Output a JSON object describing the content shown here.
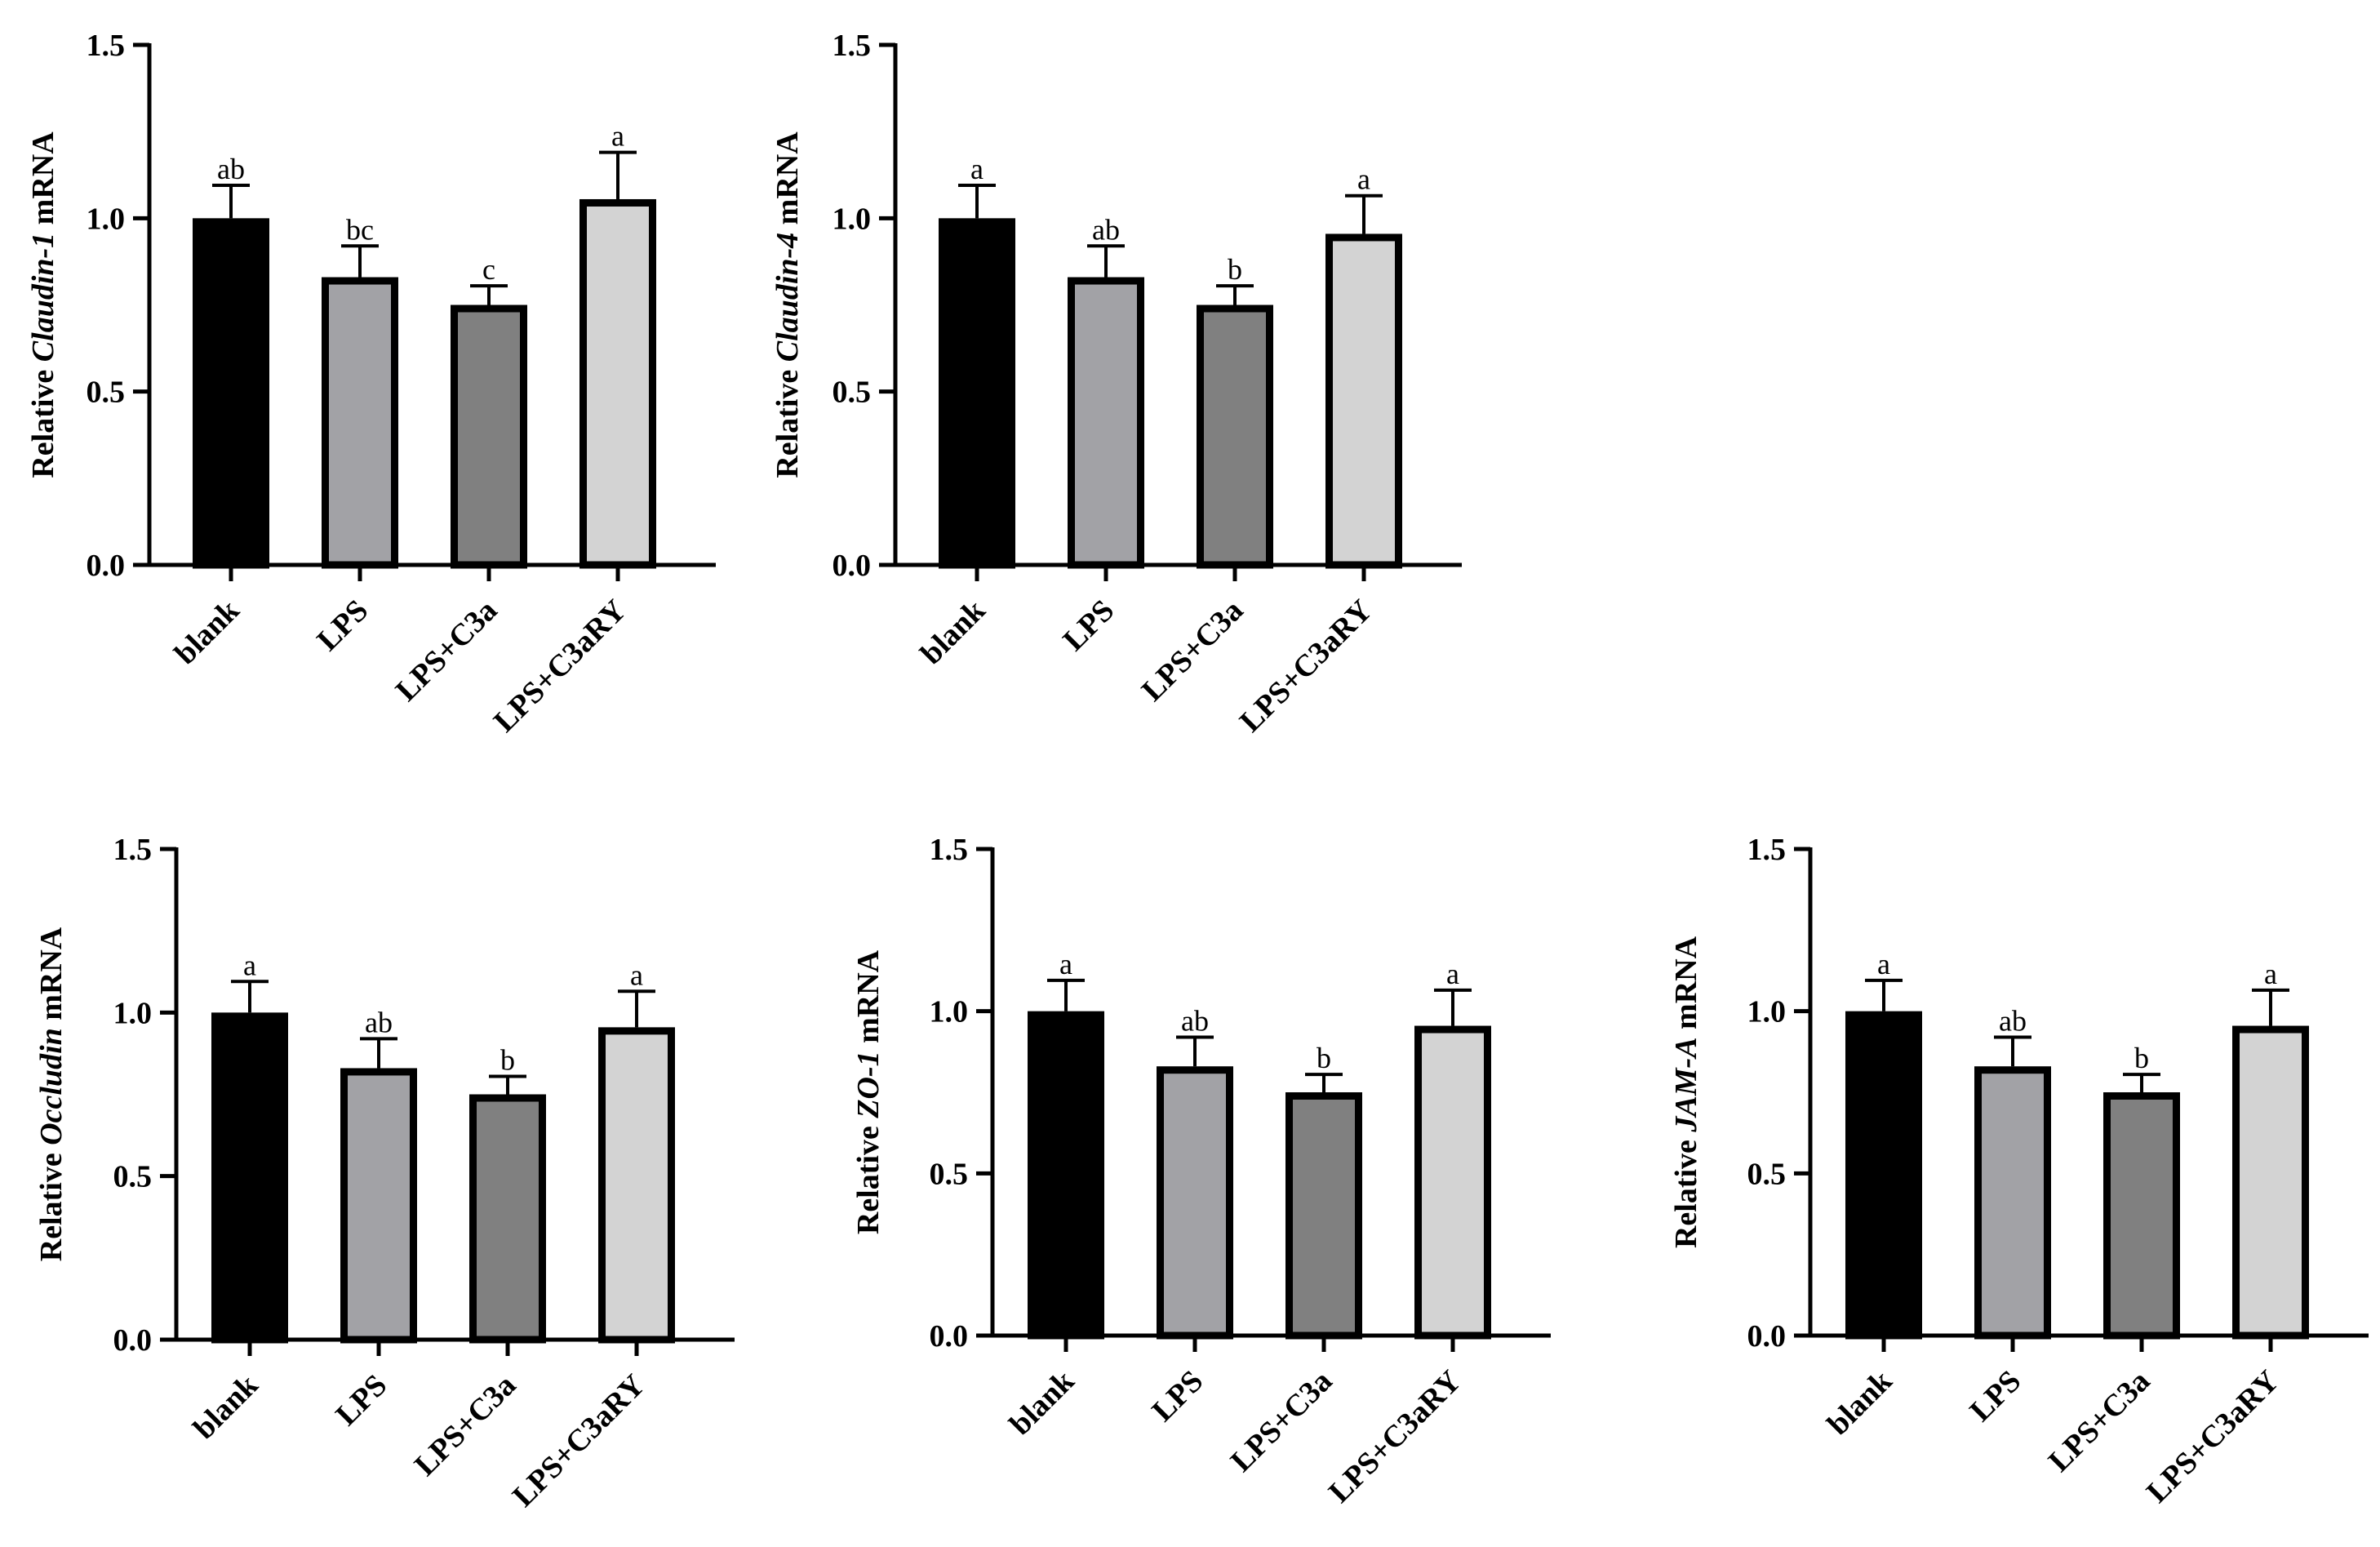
{
  "chart_data": [
    {
      "type": "bar",
      "panel": "claudin-1",
      "categories": [
        "blank",
        "LPS",
        "LPS+C3a",
        "LPS+C3aRY"
      ],
      "values": [
        1.0,
        0.83,
        0.75,
        1.055
      ],
      "errors": [
        0.095,
        0.09,
        0.055,
        0.135
      ],
      "significance": [
        "ab",
        "bc",
        "c",
        "a"
      ],
      "colors": [
        "#000000",
        "#a2a2a6",
        "#808080",
        "#d3d3d3"
      ],
      "ylabel_prefix": "Relative ",
      "ylabel_gene": "Claudin-1",
      "ylabel_suffix": " mRNA",
      "ylim": [
        0,
        1.5
      ],
      "yticks": [
        "0.0",
        "0.5",
        "1.0",
        "1.5"
      ],
      "ytick_values": [
        0,
        0.5,
        1.0,
        1.5
      ]
    },
    {
      "type": "bar",
      "panel": "claudin-4",
      "categories": [
        "blank",
        "LPS",
        "LPS+C3a",
        "LPS+C3aRY"
      ],
      "values": [
        1.0,
        0.83,
        0.75,
        0.955
      ],
      "errors": [
        0.095,
        0.09,
        0.055,
        0.11
      ],
      "significance": [
        "a",
        "ab",
        "b",
        "a"
      ],
      "colors": [
        "#000000",
        "#a2a2a6",
        "#808080",
        "#d3d3d3"
      ],
      "ylabel_prefix": "Relative ",
      "ylabel_gene": "Claudin-4",
      "ylabel_suffix": " mRNA",
      "ylim": [
        0,
        1.5
      ],
      "yticks": [
        "0.0",
        "0.5",
        "1.0",
        "1.5"
      ],
      "ytick_values": [
        0,
        0.5,
        1.0,
        1.5
      ]
    },
    {
      "type": "bar",
      "panel": "occludin",
      "categories": [
        "blank",
        "LPS",
        "LPS+C3a",
        "LPS+C3aRY"
      ],
      "values": [
        1.0,
        0.83,
        0.75,
        0.955
      ],
      "errors": [
        0.095,
        0.09,
        0.055,
        0.11
      ],
      "significance": [
        "a",
        "ab",
        "b",
        "a"
      ],
      "colors": [
        "#000000",
        "#a2a2a6",
        "#808080",
        "#d3d3d3"
      ],
      "ylabel_prefix": "Relative ",
      "ylabel_gene": "Occludin",
      "ylabel_suffix": " mRNA",
      "ylim": [
        0,
        1.5
      ],
      "yticks": [
        "0.0",
        "0.5",
        "1.0",
        "1.5"
      ],
      "ytick_values": [
        0,
        0.5,
        1.0,
        1.5
      ]
    },
    {
      "type": "bar",
      "panel": "zo-1",
      "categories": [
        "blank",
        "LPS",
        "LPS+C3a",
        "LPS+C3aRY"
      ],
      "values": [
        1.0,
        0.83,
        0.75,
        0.955
      ],
      "errors": [
        0.095,
        0.09,
        0.055,
        0.11
      ],
      "significance": [
        "a",
        "ab",
        "b",
        "a"
      ],
      "colors": [
        "#000000",
        "#a2a2a6",
        "#808080",
        "#d3d3d3"
      ],
      "ylabel_prefix": "Relative ",
      "ylabel_gene": "ZO-1",
      "ylabel_suffix": " mRNA",
      "ylim": [
        0,
        1.5
      ],
      "yticks": [
        "0.0",
        "0.5",
        "1.0",
        "1.5"
      ],
      "ytick_values": [
        0,
        0.5,
        1.0,
        1.5
      ]
    },
    {
      "type": "bar",
      "panel": "jam-a",
      "categories": [
        "blank",
        "LPS",
        "LPS+C3a",
        "LPS+C3aRY"
      ],
      "values": [
        1.0,
        0.83,
        0.75,
        0.955
      ],
      "errors": [
        0.095,
        0.09,
        0.055,
        0.11
      ],
      "significance": [
        "a",
        "ab",
        "b",
        "a"
      ],
      "colors": [
        "#000000",
        "#a2a2a6",
        "#808080",
        "#d3d3d3"
      ],
      "ylabel_prefix": "Relative ",
      "ylabel_gene": "JAM-A",
      "ylabel_suffix": " mRNA",
      "ylim": [
        0,
        1.5
      ],
      "yticks": [
        "0.0",
        "0.5",
        "1.0",
        "1.5"
      ],
      "ytick_values": [
        0,
        0.5,
        1.0,
        1.5
      ]
    }
  ]
}
